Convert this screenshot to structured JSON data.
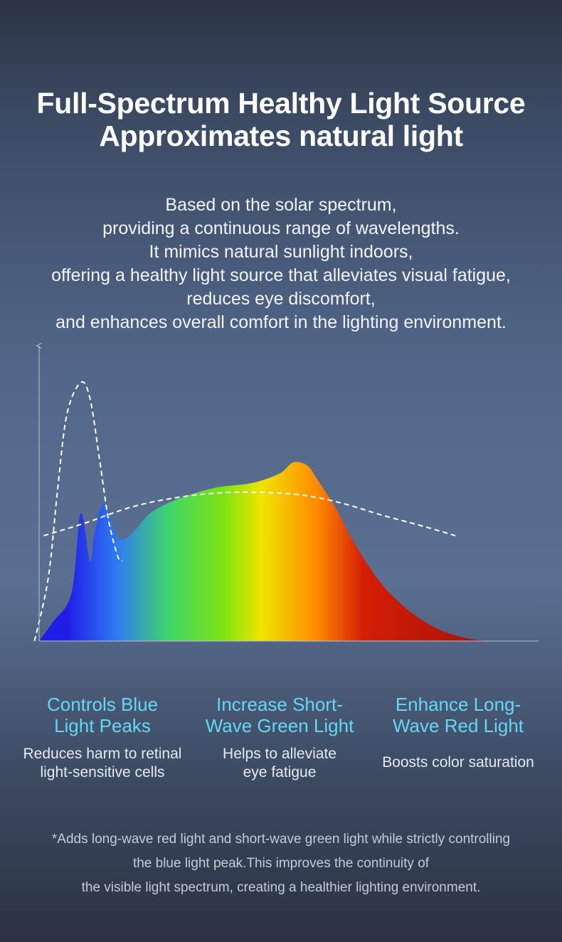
{
  "header": {
    "title_line1": "Full-Spectrum Healthy Light Source",
    "title_line2": "Approximates natural light"
  },
  "description": [
    "Based on the solar spectrum,",
    "providing a continuous range of wavelengths.",
    "It mimics natural sunlight indoors,",
    "offering a healthy light source that alleviates visual fatigue,",
    "reduces eye discomfort,",
    "and enhances overall comfort in the lighting environment."
  ],
  "chart_data": {
    "type": "area",
    "title": "",
    "xlabel": "",
    "ylabel": "",
    "axis_ticks": false,
    "grid": false,
    "series": [
      {
        "style": "filled-gradient",
        "gradient_colors": [
          "#1f1de6",
          "#2f7cf2",
          "#3fd56a",
          "#7fe410",
          "#f0e400",
          "#ff8b00",
          "#d61e06",
          "#a01208"
        ],
        "x": [
          0.0,
          0.03,
          0.07,
          0.09,
          0.11,
          0.12,
          0.14,
          0.17,
          0.2,
          0.24,
          0.3,
          0.38,
          0.46,
          0.52,
          0.55,
          0.58,
          0.6,
          0.64,
          0.68,
          0.74,
          0.8,
          0.86,
          0.92,
          0.97
        ],
        "y": [
          0.0,
          0.12,
          0.3,
          0.8,
          0.5,
          0.68,
          0.86,
          0.65,
          0.67,
          0.8,
          0.89,
          0.96,
          0.99,
          1.05,
          1.12,
          1.1,
          1.02,
          0.84,
          0.62,
          0.36,
          0.19,
          0.08,
          0.02,
          0.0
        ]
      },
      {
        "style": "dashed",
        "name": "",
        "x": [
          -0.01,
          0.02,
          0.04,
          0.06,
          0.09,
          0.11,
          0.13,
          0.15,
          0.17,
          0.18
        ],
        "y": [
          0.0,
          0.4,
          0.95,
          1.42,
          1.62,
          1.52,
          1.15,
          0.76,
          0.53,
          0.5
        ]
      },
      {
        "style": "dashed",
        "name": "",
        "x": [
          0.01,
          0.1,
          0.2,
          0.3,
          0.4,
          0.5,
          0.58,
          0.66,
          0.74,
          0.83,
          0.9
        ],
        "y": [
          0.66,
          0.74,
          0.84,
          0.9,
          0.93,
          0.93,
          0.91,
          0.86,
          0.79,
          0.72,
          0.66
        ]
      }
    ],
    "xlim": [
      0,
      1
    ],
    "ylim": [
      0,
      1.85
    ]
  },
  "features": [
    {
      "title_lines": [
        "Controls Blue",
        "Light Peaks"
      ],
      "desc_lines": [
        "Reduces harm to retinal",
        "light-sensitive cells"
      ]
    },
    {
      "title_lines": [
        "Increase Short-",
        "Wave Green Light"
      ],
      "desc_lines": [
        "Helps to alleviate",
        "eye fatigue"
      ]
    },
    {
      "title_lines": [
        "Enhance Long-",
        "Wave Red Light"
      ],
      "desc_lines": [
        "Boosts color saturation"
      ]
    }
  ],
  "footnote": [
    "*Adds long-wave red light and short-wave green light while strictly controlling",
    "the blue light peak.This improves the continuity of",
    "the visible light spectrum, creating a healthier lighting environment."
  ],
  "colors": {
    "accent_cyan": "#63d8f2",
    "dashed_curve": "#ffffff",
    "axis": "#b8c4d8"
  }
}
